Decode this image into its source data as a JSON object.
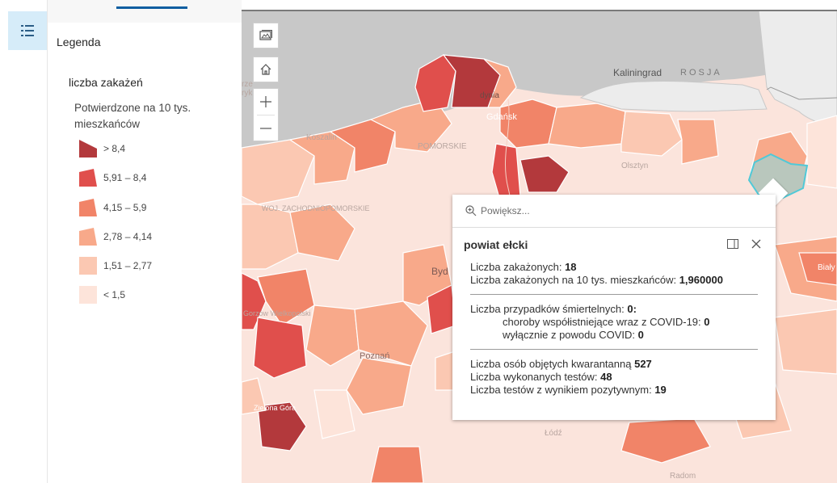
{
  "legend": {
    "title": "Legenda",
    "layer_title": "liczba zakażeń",
    "field_title": "Potwierdzone na 10 tys. mieszkańców",
    "items": [
      {
        "label": "> 8,4",
        "color": "#b3393c"
      },
      {
        "label": "5,91 – 8,4",
        "color": "#e04f4c"
      },
      {
        "label": "4,15 – 5,9",
        "color": "#f18468"
      },
      {
        "label": "2,78 – 4,14",
        "color": "#f8a98a"
      },
      {
        "label": "1,51 – 2,77",
        "color": "#fbc8b2"
      },
      {
        "label": "< 1,5",
        "color": "#fde4da"
      }
    ]
  },
  "map_labels": {
    "kaliningrad": "Kaliningrad",
    "rosja": "ROSJA",
    "gdynia": "dynia",
    "gdansk": "Gdańsk",
    "koszalin": "Koszalin",
    "pomorskie": "POMORSKIE",
    "olsztyn": "Olsztyn",
    "zachodniopomorskie": "WOJ. ZACHODNIOPOMORSKIE",
    "bydgoszcz": "Byd",
    "gorzow": "Gorzów Wielkopolski",
    "poznan": "Poznań",
    "zielona_gora": "Zielona Góra",
    "lodz": "Łódź",
    "radom": "Radom",
    "bialystok": "Biały",
    "left_edge": "rze ryk"
  },
  "map_tools": {
    "basemap_icon": "basemap-gallery-icon",
    "home_icon": "home-icon",
    "zoom_in": "+",
    "zoom_out": "—"
  },
  "popup": {
    "zoom_label": "Powiększ...",
    "title": "powiat ełcki",
    "infections_label": "Liczba zakażonych:",
    "infections_value": "18",
    "infections_rate_label": "Liczba zakażonych na 10 tys. mieszkańców:",
    "infections_rate_value": "1,960000",
    "deaths_label": "Liczba przypadków śmiertelnych:",
    "deaths_value": "0:",
    "comorbid_label": "choroby współistniejące wraz z COVID-19:",
    "comorbid_value": "0",
    "covid_only_label": "wyłącznie z powodu COVID:",
    "covid_only_value": "0",
    "quarantine_label": "Liczba osób objętych kwarantanną",
    "quarantine_value": "527",
    "tests_label": "Liczba wykonanych testów:",
    "tests_value": "48",
    "positive_tests_label": "Liczba testów z wynikiem pozytywnym:",
    "positive_tests_value": "19"
  }
}
